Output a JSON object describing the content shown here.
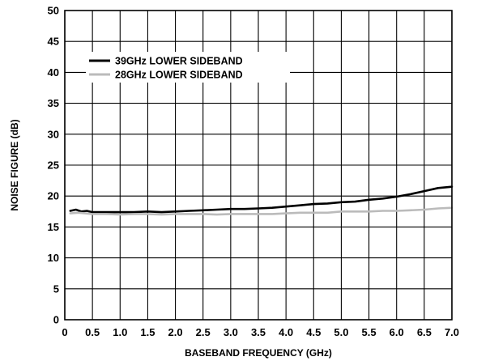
{
  "chart_data": {
    "type": "line",
    "title": "",
    "xlabel": "BASEBAND FREQUENCY (GHz)",
    "ylabel": "NOISE FIGURE (dB)",
    "xlim": [
      0,
      7.0
    ],
    "ylim": [
      0,
      50
    ],
    "x_ticks": [
      0,
      0.5,
      1.0,
      1.5,
      2.0,
      2.5,
      3.0,
      3.5,
      4.0,
      4.5,
      5.0,
      5.5,
      6.0,
      6.5,
      7.0
    ],
    "x_tick_labels": [
      "0",
      "0.5",
      "1.0",
      "1.5",
      "2.0",
      "2.5",
      "3.0",
      "3.5",
      "4.0",
      "4.5",
      "5.0",
      "5.5",
      "6.0",
      "6.5",
      "7.0"
    ],
    "y_ticks": [
      0,
      5,
      10,
      15,
      20,
      25,
      30,
      35,
      40,
      45,
      50
    ],
    "y_tick_labels": [
      "0",
      "5",
      "10",
      "15",
      "20",
      "25",
      "30",
      "35",
      "40",
      "45",
      "50"
    ],
    "grid": true,
    "legend_position": "top-left",
    "series": [
      {
        "name": "39GHz LOWER SIDEBAND",
        "color": "#000000",
        "x": [
          0.1,
          0.2,
          0.3,
          0.4,
          0.5,
          0.75,
          1.0,
          1.25,
          1.5,
          1.75,
          2.0,
          2.25,
          2.5,
          2.75,
          3.0,
          3.25,
          3.5,
          3.75,
          4.0,
          4.25,
          4.5,
          4.75,
          5.0,
          5.25,
          5.5,
          5.75,
          6.0,
          6.25,
          6.5,
          6.75,
          7.0
        ],
        "values": [
          17.6,
          17.8,
          17.5,
          17.6,
          17.4,
          17.4,
          17.4,
          17.4,
          17.5,
          17.4,
          17.5,
          17.6,
          17.7,
          17.8,
          17.9,
          17.9,
          18.0,
          18.1,
          18.3,
          18.5,
          18.7,
          18.8,
          19.0,
          19.1,
          19.4,
          19.6,
          19.9,
          20.3,
          20.8,
          21.3,
          21.5
        ]
      },
      {
        "name": "28GHz LOWER SIDEBAND",
        "color": "#bbbbbb",
        "x": [
          0.1,
          0.25,
          0.5,
          0.75,
          1.0,
          1.25,
          1.5,
          1.75,
          2.0,
          2.25,
          2.5,
          2.75,
          3.0,
          3.25,
          3.5,
          3.75,
          4.0,
          4.25,
          4.5,
          4.75,
          5.0,
          5.25,
          5.5,
          5.75,
          6.0,
          6.25,
          6.5,
          6.75,
          7.0
        ],
        "values": [
          17.2,
          17.3,
          17.1,
          17.1,
          17.0,
          17.1,
          17.1,
          17.0,
          17.1,
          17.1,
          17.1,
          17.0,
          17.1,
          17.1,
          17.1,
          17.1,
          17.2,
          17.3,
          17.3,
          17.3,
          17.5,
          17.5,
          17.5,
          17.6,
          17.6,
          17.7,
          17.8,
          18.0,
          18.1
        ]
      }
    ]
  }
}
